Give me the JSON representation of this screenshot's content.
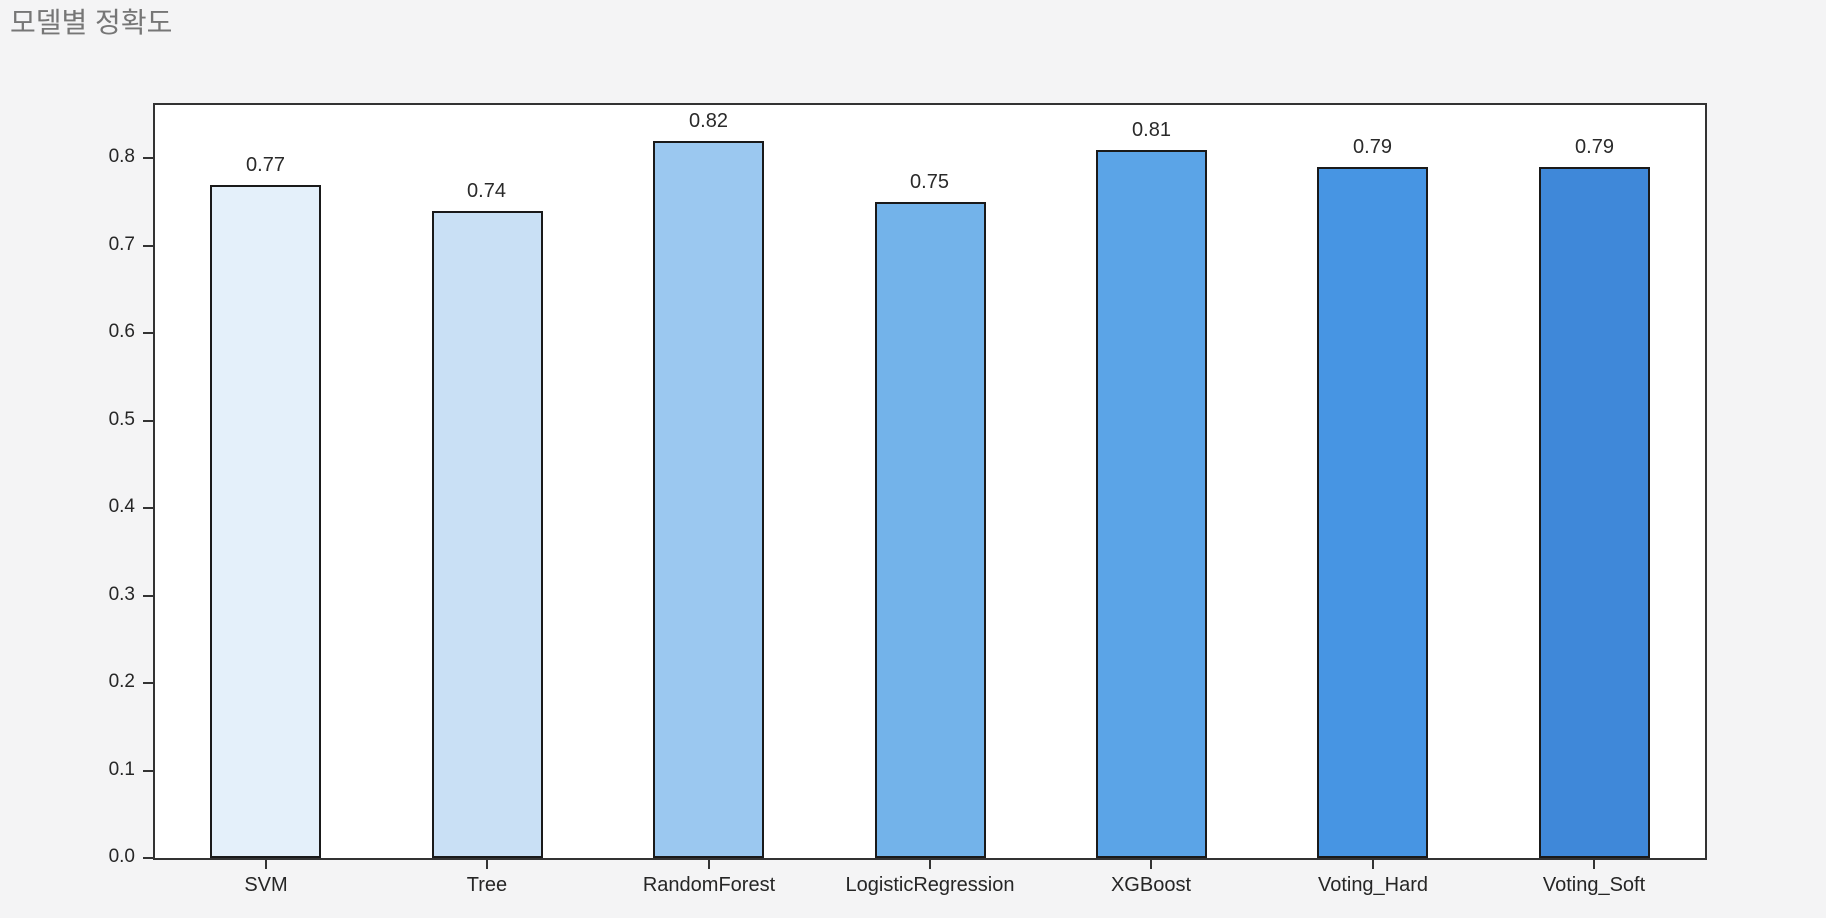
{
  "page": {
    "title": "모델별 정확도",
    "background_color": "#f4f4f5",
    "plot_background_color": "#ffffff",
    "title_color": "#767676",
    "spine_color": "#333333",
    "tick_label_color": "#262626"
  },
  "chart_data": {
    "type": "bar",
    "title": "모델별 정확도",
    "categories": [
      "SVM",
      "Tree",
      "RandomForest",
      "LogisticRegression",
      "XGBoost",
      "Voting_Hard",
      "Voting_Soft"
    ],
    "values": [
      0.77,
      0.74,
      0.82,
      0.75,
      0.81,
      0.79,
      0.79
    ],
    "bar_value_labels": [
      "0.77",
      "0.74",
      "0.82",
      "0.75",
      "0.81",
      "0.79",
      "0.79"
    ],
    "bar_colors": [
      "#e4f0fa",
      "#c9e0f5",
      "#9bc8f0",
      "#73b3ea",
      "#5ba4e7",
      "#4795e3",
      "#3f88d9"
    ],
    "bar_edge_color": "#1a1a1a",
    "xlabel": "",
    "ylabel": "",
    "y_ticks": [
      "0.0",
      "0.1",
      "0.2",
      "0.3",
      "0.4",
      "0.5",
      "0.6",
      "0.7",
      "0.8"
    ],
    "y_tick_values": [
      0.0,
      0.1,
      0.2,
      0.3,
      0.4,
      0.5,
      0.6,
      0.7,
      0.8
    ],
    "ylim": [
      0,
      0.861
    ],
    "bar_width_fraction": 0.5,
    "grid": false,
    "legend": null
  }
}
